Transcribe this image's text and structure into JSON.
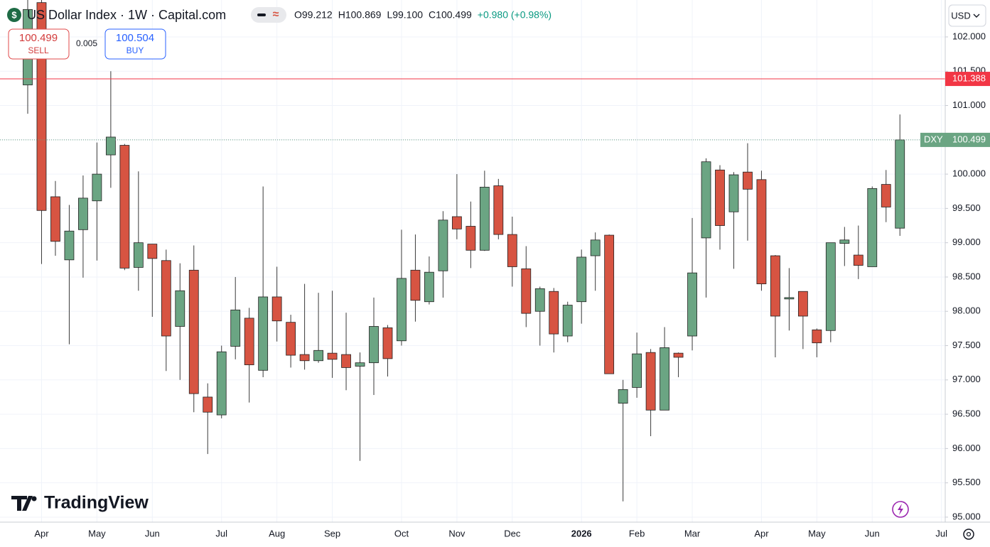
{
  "chart_data": {
    "type": "candlestick",
    "title": "US Dollar Index · 1W · Capital.com",
    "legend_values": [
      "O99.212",
      "H100.869",
      "L99.100",
      "C100.499",
      "+0.980 (+0.98%)"
    ],
    "sell": {
      "price": 100.499,
      "label": "SELL"
    },
    "spread": 0.005,
    "buy": {
      "price": 100.504,
      "label": "BUY"
    },
    "currency": "USD",
    "brand": "TradingView",
    "up_color": "#6ba583",
    "down_color": "#d75442",
    "categories": [
      null,
      "Apr",
      null,
      null,
      null,
      "May",
      null,
      null,
      null,
      "Jun",
      null,
      null,
      null,
      null,
      "Jul",
      null,
      null,
      null,
      "Aug",
      null,
      null,
      null,
      "Sep",
      null,
      null,
      null,
      null,
      "Oct",
      null,
      null,
      null,
      "Nov",
      null,
      null,
      null,
      "Dec",
      null,
      null,
      null,
      null,
      "2026",
      null,
      null,
      null,
      "Feb",
      null,
      null,
      null,
      "Mar",
      null,
      null,
      null,
      null,
      "Apr",
      null,
      null,
      null,
      "May",
      null,
      null,
      null,
      "Jun",
      null,
      null
    ],
    "categories_after": [
      "Jul"
    ],
    "open": [
      101.3,
      102.5,
      99.67,
      98.75,
      99.19,
      99.61,
      100.28,
      100.42,
      98.64,
      98.98,
      98.74,
      97.78,
      98.6,
      96.75,
      96.49,
      97.49,
      97.9,
      97.14,
      98.21,
      97.84,
      97.37,
      97.28,
      97.39,
      97.37,
      97.2,
      97.25,
      97.76,
      97.57,
      98.6,
      98.14,
      98.59,
      99.38,
      99.24,
      98.89,
      99.83,
      99.12,
      98.62,
      98.0,
      98.29,
      97.64,
      98.14,
      98.81,
      99.11,
      96.66,
      96.89,
      97.4,
      96.56,
      97.39,
      97.64,
      99.07,
      100.06,
      99.45,
      100.03,
      99.92,
      98.81,
      98.18,
      98.29,
      97.73,
      97.72,
      98.99,
      98.82,
      98.65,
      99.85,
      99.212
    ],
    "high": [
      102.6,
      102.8,
      99.9,
      99.55,
      99.98,
      100.46,
      101.5,
      100.44,
      100.04,
      98.98,
      98.9,
      98.7,
      98.96,
      96.95,
      97.5,
      98.5,
      98.05,
      99.82,
      98.65,
      97.95,
      98.4,
      98.27,
      98.3,
      97.98,
      97.4,
      98.2,
      97.8,
      99.19,
      99.12,
      98.8,
      99.46,
      100.0,
      99.6,
      100.05,
      99.93,
      99.38,
      98.95,
      98.36,
      98.34,
      98.14,
      98.9,
      99.15,
      99.12,
      97.0,
      97.69,
      97.45,
      97.77,
      97.4,
      99.36,
      100.23,
      100.13,
      100.03,
      100.45,
      100.05,
      98.82,
      98.63,
      98.29,
      97.75,
      99.0,
      99.23,
      99.25,
      99.82,
      100.06,
      100.869
    ],
    "low": [
      100.88,
      98.69,
      98.81,
      97.52,
      98.49,
      98.74,
      99.8,
      98.6,
      98.3,
      97.92,
      97.13,
      97.0,
      96.53,
      95.92,
      96.44,
      97.3,
      96.67,
      97.04,
      97.56,
      97.18,
      97.15,
      97.25,
      97.03,
      96.85,
      95.82,
      96.78,
      97.05,
      97.5,
      97.85,
      98.1,
      98.2,
      99.05,
      98.63,
      98.88,
      99.05,
      98.36,
      97.77,
      97.5,
      97.4,
      97.55,
      97.82,
      98.3,
      97.09,
      95.23,
      96.74,
      96.18,
      96.56,
      97.04,
      97.43,
      98.2,
      98.9,
      98.62,
      99.03,
      98.3,
      97.33,
      97.72,
      97.45,
      97.33,
      97.55,
      98.66,
      98.47,
      98.65,
      99.3,
      99.1
    ],
    "close": [
      102.4,
      99.47,
      99.02,
      99.17,
      99.65,
      100.0,
      100.54,
      98.63,
      99.0,
      98.77,
      97.64,
      98.3,
      96.8,
      96.53,
      97.41,
      98.02,
      97.22,
      98.21,
      97.86,
      97.36,
      97.28,
      97.43,
      97.3,
      97.18,
      97.25,
      97.78,
      97.31,
      98.48,
      98.16,
      98.57,
      99.33,
      99.2,
      98.89,
      99.81,
      99.12,
      98.65,
      97.97,
      98.33,
      97.67,
      98.09,
      98.79,
      99.04,
      97.09,
      96.86,
      97.38,
      96.56,
      97.47,
      97.33,
      98.56,
      100.18,
      99.25,
      99.99,
      99.78,
      98.4,
      97.93,
      98.2,
      97.93,
      97.54,
      99.0,
      99.04,
      98.67,
      99.79,
      99.52,
      100.499
    ],
    "ylim": [
      94.927,
      102.538
    ],
    "yticks": [
      {
        "value": 95,
        "label": "95.000"
      },
      {
        "value": 95.5,
        "label": "95.500"
      },
      {
        "value": 96,
        "label": "96.000"
      },
      {
        "value": 96.5,
        "label": "96.500"
      },
      {
        "value": 97,
        "label": "97.000"
      },
      {
        "value": 97.5,
        "label": "97.500"
      },
      {
        "value": 98,
        "label": "98.000"
      },
      {
        "value": 98.5,
        "label": "98.500"
      },
      {
        "value": 99,
        "label": "99.000"
      },
      {
        "value": 99.5,
        "label": "99.500"
      },
      {
        "value": 100,
        "label": "100.000"
      },
      {
        "value": 100.5,
        "label": "100.500"
      },
      {
        "value": 101,
        "label": "101.000"
      },
      {
        "value": 101.5,
        "label": "101.500"
      },
      {
        "value": 102,
        "label": "102.000"
      }
    ],
    "grid": true,
    "price_line": {
      "value": 101.388,
      "color": "#f23645"
    },
    "last_price": {
      "symbol": "DXY",
      "value": 100.499
    }
  }
}
